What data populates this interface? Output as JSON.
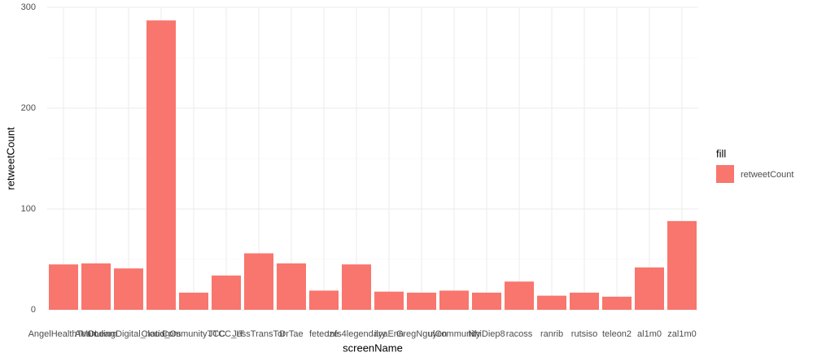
{
  "chart_data": {
    "type": "bar",
    "x_label": "screenName",
    "y_label": "retweetCount",
    "legend_title": "fill",
    "categories": [
      "AngelHealthTeam",
      "AMDLearn",
      "CodingDigital_nation",
      "Cloud_Os",
      "CommunityTCC",
      "JTCC_IT",
      "JessTransTor",
      "DrTae",
      "feteoze",
      "Infs4legendary",
      "ilyaEnn",
      "GregNguyen",
      "ulCommunity",
      "NhiDiep8",
      "racoss",
      "ranrib",
      "rutsiso",
      "teleon2",
      "al1m0",
      "zal1m0"
    ],
    "series": [
      {
        "name": "retweetCount",
        "color": "#f8766d",
        "values": [
          45,
          46,
          41,
          287,
          17,
          34,
          56,
          46,
          19,
          45,
          18,
          17,
          19,
          17,
          28,
          14,
          17,
          13,
          42,
          88
        ]
      }
    ],
    "ylim": [
      0,
      300
    ],
    "yticks": [
      0,
      100,
      200,
      300
    ],
    "grid": true
  }
}
